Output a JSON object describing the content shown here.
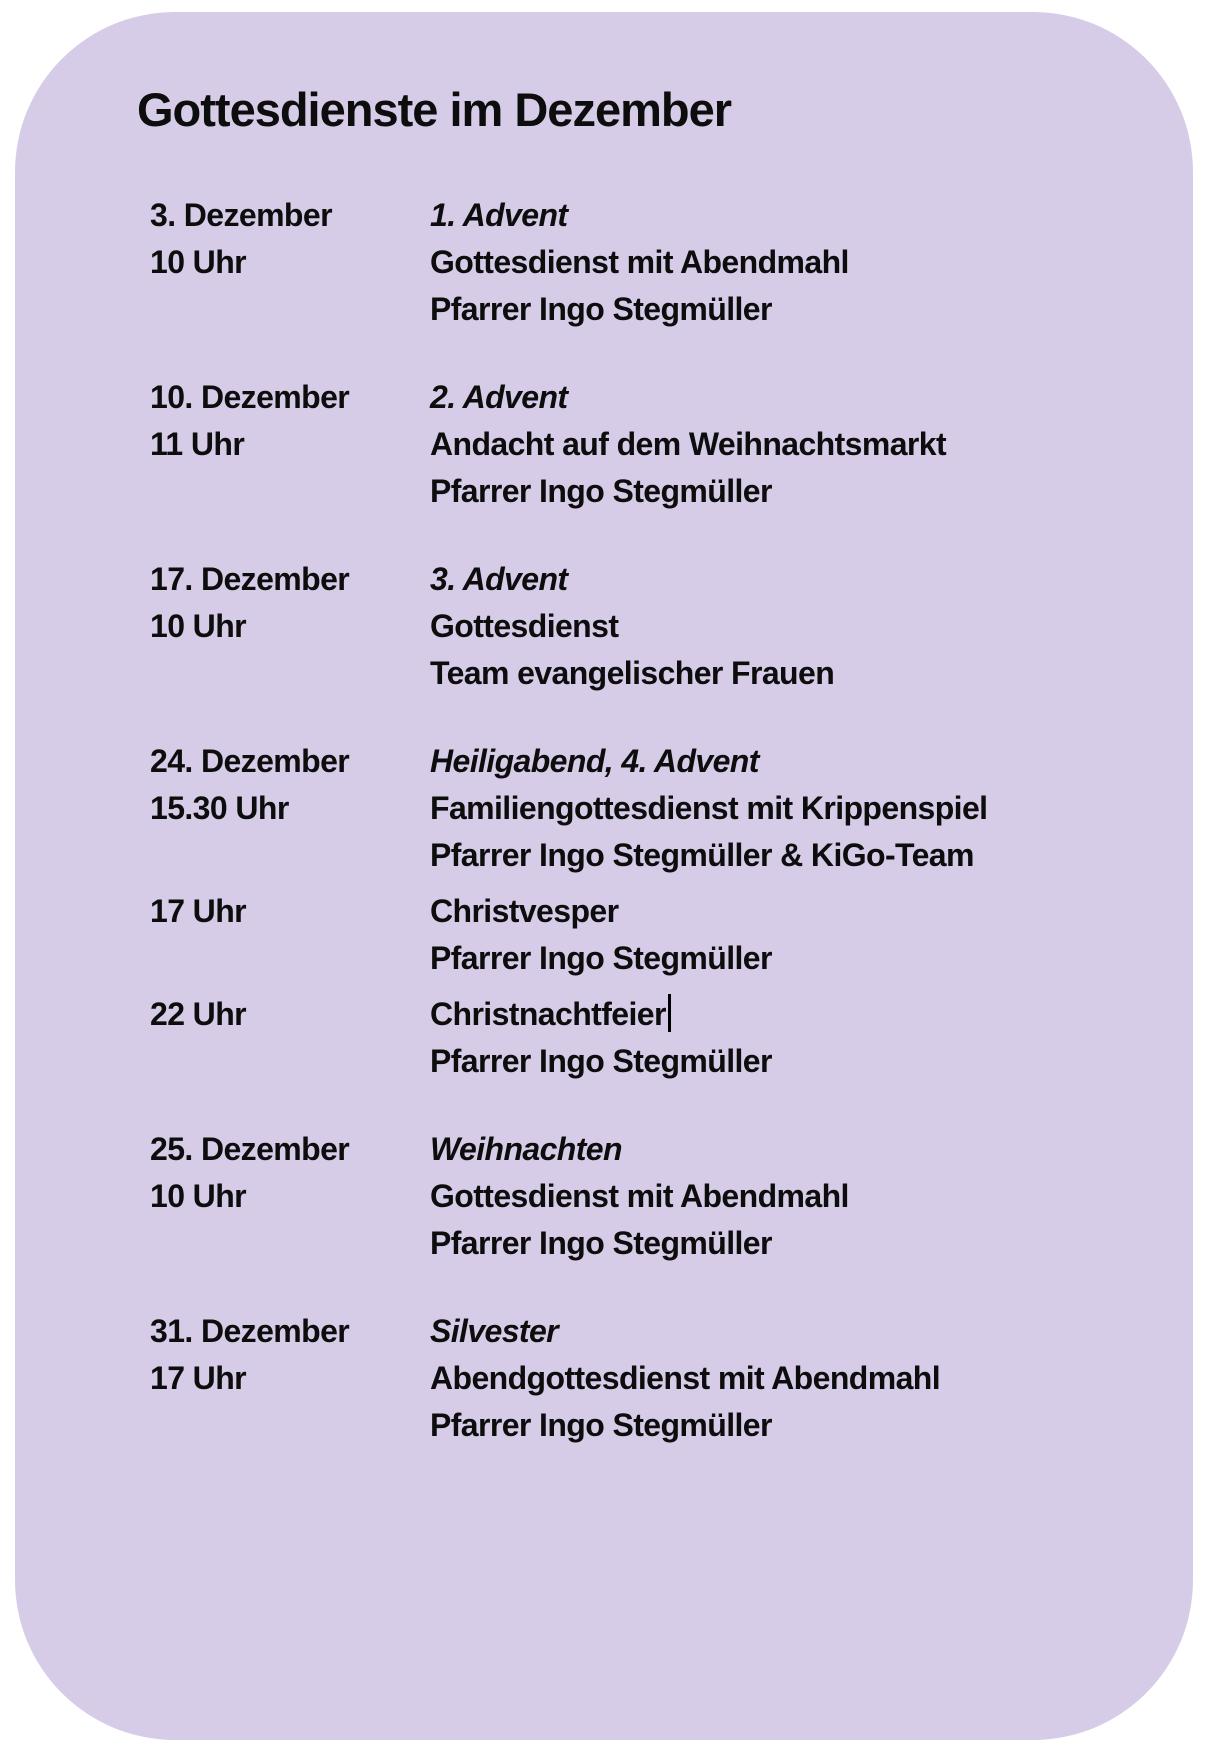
{
  "page": {
    "title": "Gottesdienste im Dezember"
  },
  "colors": {
    "card_background": "#d7cce8",
    "page_background": "#ffffff",
    "text": "#0d0d0d"
  },
  "schedule": [
    {
      "date": "3. Dezember",
      "event": "1. Advent",
      "services": [
        {
          "time": "10 Uhr",
          "lines": [
            "Gottesdienst mit Abendmahl",
            "Pfarrer Ingo Stegmüller"
          ]
        }
      ]
    },
    {
      "date": "10. Dezember",
      "event": "2. Advent",
      "services": [
        {
          "time": "11 Uhr",
          "lines": [
            "Andacht auf dem Weihnachtsmarkt",
            "Pfarrer Ingo Stegmüller"
          ]
        }
      ]
    },
    {
      "date": "17. Dezember",
      "event": "3. Advent",
      "services": [
        {
          "time": "10 Uhr",
          "lines": [
            "Gottesdienst",
            "Team evangelischer Frauen"
          ]
        }
      ]
    },
    {
      "date": "24. Dezember",
      "event": "Heiligabend, 4. Advent",
      "services": [
        {
          "time": "15.30 Uhr",
          "lines": [
            "Familiengottesdienst mit Krippenspiel",
            "Pfarrer Ingo Stegmüller & KiGo-Team"
          ]
        },
        {
          "time": "17 Uhr",
          "lines": [
            "Christvesper",
            "Pfarrer Ingo Stegmüller"
          ]
        },
        {
          "time": "22 Uhr",
          "lines": [
            "Christnachtfeier",
            "Pfarrer Ingo Stegmüller"
          ],
          "caret_after_line": 0
        }
      ]
    },
    {
      "date": "25. Dezember",
      "event": "Weihnachten",
      "services": [
        {
          "time": "10 Uhr",
          "lines": [
            "Gottesdienst mit Abendmahl",
            "Pfarrer Ingo Stegmüller"
          ]
        }
      ]
    },
    {
      "date": "31. Dezember",
      "event": "Silvester",
      "services": [
        {
          "time": "17 Uhr",
          "lines": [
            "Abendgottesdienst mit Abendmahl",
            "Pfarrer Ingo Stegmüller"
          ]
        }
      ]
    }
  ]
}
